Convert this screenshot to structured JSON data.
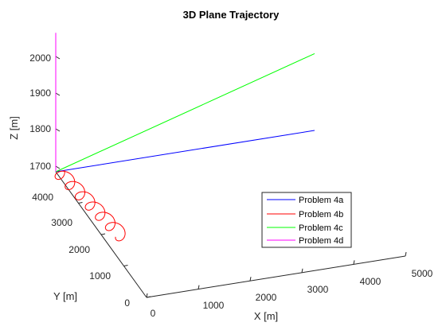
{
  "chart_data": {
    "type": "line",
    "projection": "3d",
    "title": "3D Plane Trajectory",
    "xlabel": "X [m]",
    "ylabel": "Y [m]",
    "zlabel": "Z [m]",
    "xlim": [
      0,
      5000
    ],
    "ylim": [
      0,
      4000
    ],
    "zlim": [
      1700,
      2000
    ],
    "xticks": [
      "0",
      "1000",
      "2000",
      "3000",
      "4000",
      "5000"
    ],
    "yticks": [
      "0",
      "1000",
      "2000",
      "3000",
      "4000"
    ],
    "zticks": [
      "1700",
      "1800",
      "1900",
      "2000"
    ],
    "grid": false,
    "legend_position": "inside-right",
    "series": [
      {
        "name": "Problem 4a",
        "color": "#0000ff",
        "points": [
          [
            0,
            4000,
            1700
          ],
          [
            5000,
            4000,
            1700
          ]
        ]
      },
      {
        "name": "Problem 4b",
        "color": "#ff0000",
        "style": "helix",
        "points": [
          [
            0,
            4000,
            1700
          ],
          [
            300,
            1800,
            1700
          ]
        ],
        "helix_turns": 6.5,
        "helix_radius": 200
      },
      {
        "name": "Problem 4c",
        "color": "#00ff00",
        "points": [
          [
            0,
            4000,
            1700
          ],
          [
            5000,
            4000,
            1910
          ]
        ]
      },
      {
        "name": "Problem 4d",
        "color": "#ff00ff",
        "points": [
          [
            0,
            4000,
            1700
          ],
          [
            0,
            4000,
            2080
          ]
        ]
      }
    ]
  }
}
